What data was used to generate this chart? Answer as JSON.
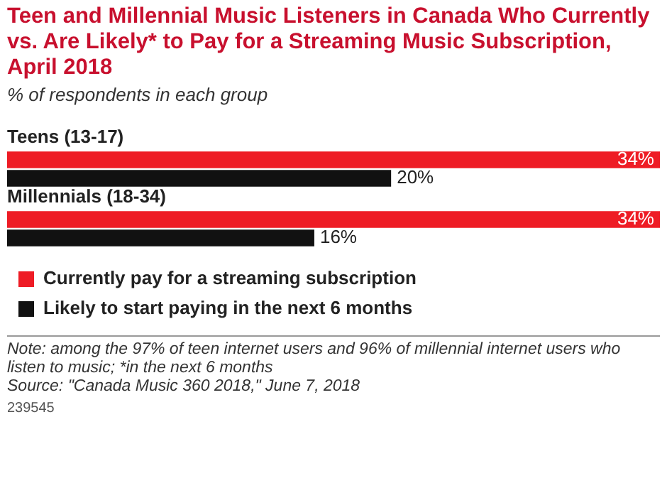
{
  "chart_data": {
    "type": "bar",
    "orientation": "horizontal",
    "title": "Teen and Millennial Music Listeners in Canada Who Currently vs. Are Likely* to Pay for a Streaming Music Subscription, April 2018",
    "subtitle": "% of respondents in each group",
    "categories": [
      "Teens (13-17)",
      "Millennials (18-34)"
    ],
    "series": [
      {
        "name": "Currently pay for a streaming subscription",
        "color": "#ee1c25",
        "values": [
          34,
          34
        ],
        "value_labels": [
          "34%",
          "34%"
        ]
      },
      {
        "name": "Likely to start paying in the next 6 months",
        "color": "#111111",
        "values": [
          20,
          16
        ],
        "value_labels": [
          "20%",
          "16%"
        ]
      }
    ],
    "legend": "bottom",
    "annotations": [
      "Note: among the 97% of teen internet users and 96% of millennial internet users who listen to music; *in the next 6 months",
      "Source: \"Canada Music 360 2018,\" June 7, 2018",
      "239545"
    ]
  }
}
